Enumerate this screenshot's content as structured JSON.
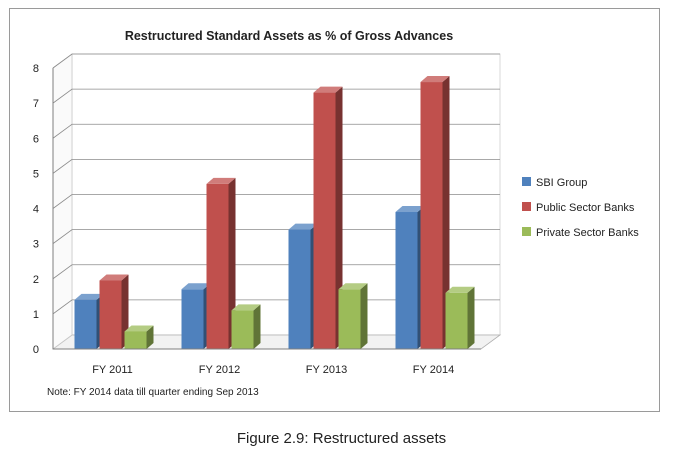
{
  "chart_data": {
    "type": "bar",
    "title": "Restructured Standard Assets as % of Gross Advances",
    "categories": [
      "FY 2011",
      "FY 2012",
      "FY 2013",
      "FY 2014"
    ],
    "series": [
      {
        "name": "SBI Group",
        "values": [
          1.4,
          1.7,
          3.4,
          3.9
        ],
        "color": "#4f81bd"
      },
      {
        "name": "Public Sector Banks",
        "values": [
          1.95,
          4.7,
          7.3,
          7.6
        ],
        "color": "#c0504d"
      },
      {
        "name": "Private Sector Banks",
        "values": [
          0.5,
          1.1,
          1.7,
          1.6
        ],
        "color": "#9bbb59"
      }
    ],
    "yticks": [
      "0",
      "1",
      "2",
      "3",
      "4",
      "5",
      "6",
      "7",
      "8"
    ],
    "ylim": [
      0,
      8
    ],
    "xlabel": "",
    "ylabel": "",
    "grid": true,
    "legend_position": "right",
    "note": "Note: FY 2014 data till quarter ending Sep 2013"
  },
  "caption": "Figure 2.9: Restructured assets"
}
